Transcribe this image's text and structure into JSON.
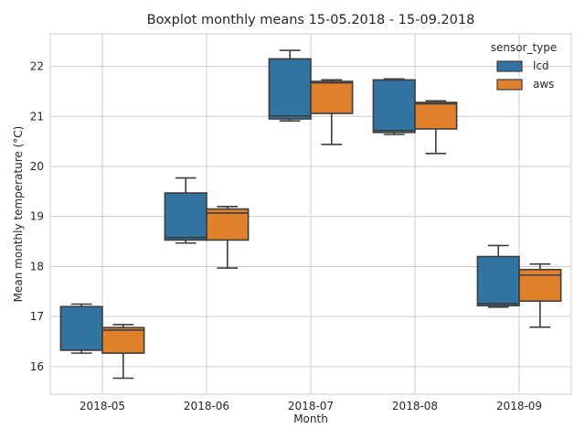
{
  "chart_data": {
    "type": "boxplot",
    "title": "Boxplot monthly means 15-05.2018 - 15-09.2018",
    "xlabel": "Month",
    "ylabel": "Mean monthly temperature (°C)",
    "ylim": [
      15.45,
      22.65
    ],
    "yticks": [
      16,
      17,
      18,
      19,
      20,
      21,
      22
    ],
    "grid": true,
    "legend_position": "top-right",
    "legend_title": "sensor_type",
    "categories": [
      "2018-05",
      "2018-06",
      "2018-07",
      "2018-08",
      "2018-09"
    ],
    "series": [
      {
        "name": "lcd",
        "color": "#3274a1",
        "boxes": [
          {
            "min": 16.27,
            "q1": 16.33,
            "median": 16.33,
            "q3": 17.2,
            "max": 17.25
          },
          {
            "min": 18.47,
            "q1": 18.53,
            "median": 18.58,
            "q3": 19.47,
            "max": 19.77
          },
          {
            "min": 20.91,
            "q1": 20.95,
            "median": 21.01,
            "q3": 22.15,
            "max": 22.32
          },
          {
            "min": 20.64,
            "q1": 20.68,
            "median": 20.72,
            "q3": 21.73,
            "max": 21.75
          },
          {
            "min": 17.19,
            "q1": 17.22,
            "median": 17.26,
            "q3": 18.2,
            "max": 18.42
          }
        ]
      },
      {
        "name": "aws",
        "color": "#e1812c",
        "boxes": [
          {
            "min": 15.77,
            "q1": 16.27,
            "median": 16.73,
            "q3": 16.78,
            "max": 16.84
          },
          {
            "min": 17.97,
            "q1": 18.53,
            "median": 19.07,
            "q3": 19.15,
            "max": 19.2
          },
          {
            "min": 20.44,
            "q1": 21.06,
            "median": 21.67,
            "q3": 21.7,
            "max": 21.73
          },
          {
            "min": 20.26,
            "q1": 20.75,
            "median": 21.25,
            "q3": 21.28,
            "max": 21.31
          },
          {
            "min": 16.79,
            "q1": 17.31,
            "median": 17.83,
            "q3": 17.94,
            "max": 18.05
          }
        ]
      }
    ]
  }
}
